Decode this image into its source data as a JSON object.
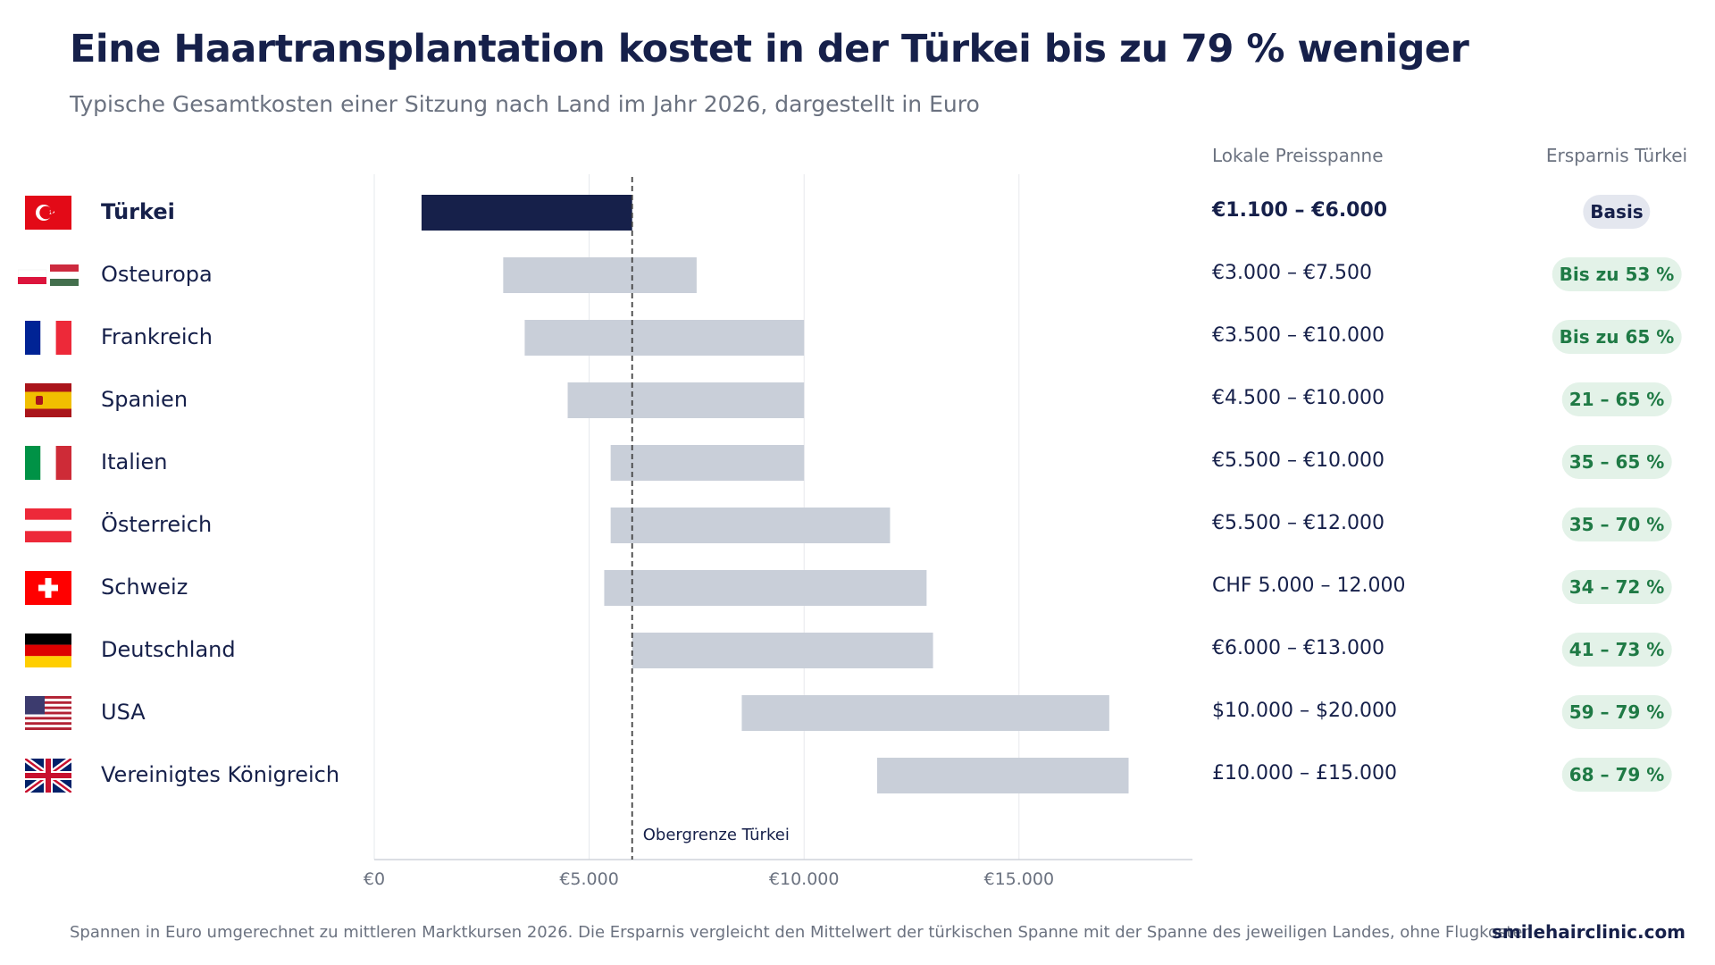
{
  "header": {
    "title": "Eine Haartransplantation kostet in der Türkei bis zu 79 % weniger",
    "subtitle": "Typische Gesamtkosten einer Sitzung nach Land im Jahr 2026, dargestellt in Euro"
  },
  "columns": {
    "range_header": "Lokale Preisspanne",
    "savings_header": "Ersparnis Türkei"
  },
  "rows": [
    {
      "country": "Türkei",
      "flag": "flag-turkey-icon",
      "range_text": "€1.100 – €6.000",
      "savings": "Basis",
      "is_base": true
    },
    {
      "country": "Osteuropa",
      "flag": "flag-poland-hungary-icon",
      "range_text": "€3.000 – €7.500",
      "savings": "Bis zu 53 %",
      "is_base": false
    },
    {
      "country": "Frankreich",
      "flag": "flag-france-icon",
      "range_text": "€3.500 – €10.000",
      "savings": "Bis zu 65 %",
      "is_base": false
    },
    {
      "country": "Spanien",
      "flag": "flag-spain-icon",
      "range_text": "€4.500 – €10.000",
      "savings": "21 – 65 %",
      "is_base": false
    },
    {
      "country": "Italien",
      "flag": "flag-italy-icon",
      "range_text": "€5.500 – €10.000",
      "savings": "35 – 65 %",
      "is_base": false
    },
    {
      "country": "Österreich",
      "flag": "flag-austria-icon",
      "range_text": "€5.500 – €12.000",
      "savings": "35 – 70 %",
      "is_base": false
    },
    {
      "country": "Schweiz",
      "flag": "flag-switzerland-icon",
      "range_text": "CHF 5.000 – 12.000",
      "savings": "34 – 72 %",
      "is_base": false
    },
    {
      "country": "Deutschland",
      "flag": "flag-germany-icon",
      "range_text": "€6.000 – €13.000",
      "savings": "41 – 73 %",
      "is_base": false
    },
    {
      "country": "USA",
      "flag": "flag-usa-icon",
      "range_text": "$10.000 – $20.000",
      "savings": "59 – 79 %",
      "is_base": false
    },
    {
      "country": "Vereinigtes Königreich",
      "flag": "flag-uk-icon",
      "range_text": "£10.000 – £15.000",
      "savings": "68 – 79 %",
      "is_base": false
    }
  ],
  "chart_data": {
    "type": "bar",
    "orientation": "horizontal-range",
    "categories": [
      "Türkei",
      "Osteuropa",
      "Frankreich",
      "Spanien",
      "Italien",
      "Österreich",
      "Schweiz",
      "Deutschland",
      "USA",
      "Vereinigtes Königreich"
    ],
    "ranges": [
      [
        1100,
        6000
      ],
      [
        3000,
        7500
      ],
      [
        3500,
        10000
      ],
      [
        4500,
        10000
      ],
      [
        5500,
        10000
      ],
      [
        5500,
        12000
      ],
      [
        5350,
        12850
      ],
      [
        6000,
        13000
      ],
      [
        8550,
        17100
      ],
      [
        11700,
        17550
      ]
    ],
    "xlim": [
      0,
      19000
    ],
    "xticks": [
      0,
      5000,
      10000,
      15000
    ],
    "xtick_labels": [
      "€0",
      "€5.000",
      "€10.000",
      "€15.000"
    ],
    "reference_line": {
      "value": 6000,
      "label": "Obergrenze Türkei"
    },
    "grid": true,
    "colors": {
      "base": "#16204a",
      "other": "#c9cfd9",
      "grid": "#e6e8ec",
      "axis": "#cfd3da",
      "refline": "#444444"
    }
  },
  "footer": {
    "note": "Spannen in Euro umgerechnet zu mittleren Marktkursen 2026. Die Ersparnis vergleicht den Mittelwert der türkischen Spanne mit der Spanne des jeweiligen Landes, ohne Flugkosten.",
    "brand": "smilehairclinic.com"
  }
}
